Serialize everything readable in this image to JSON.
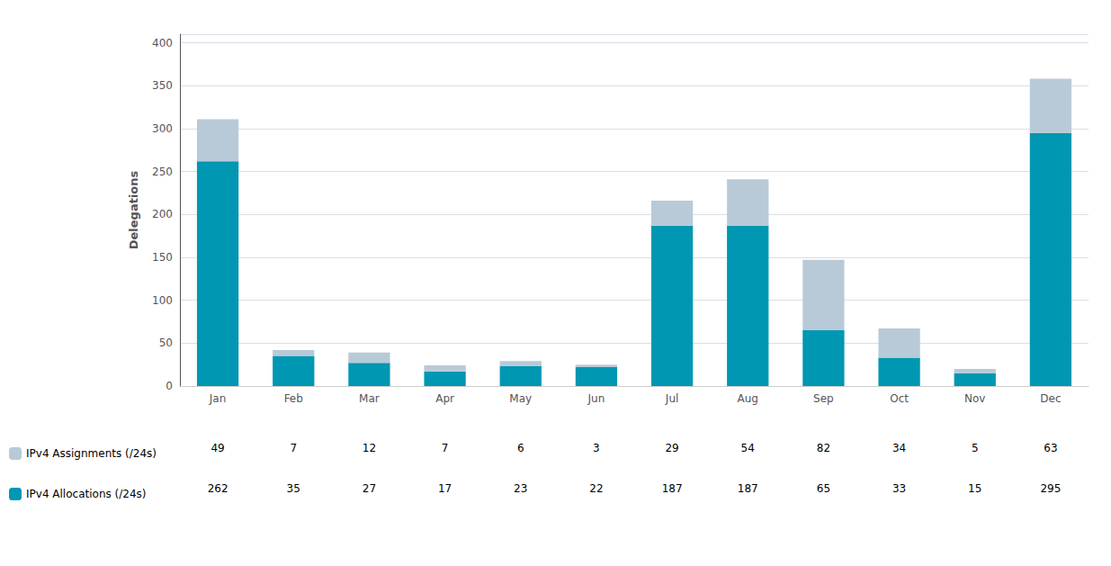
{
  "chart_data": {
    "type": "bar",
    "ylabel": "Delegations",
    "categories": [
      "Jan",
      "Feb",
      "Mar",
      "Apr",
      "May",
      "Jun",
      "Jul",
      "Aug",
      "Sep",
      "Oct",
      "Nov",
      "Dec"
    ],
    "series": [
      {
        "name": "IPv4 Allocations (/24s)",
        "color": "#0097B2",
        "values": [
          262,
          35,
          27,
          17,
          23,
          22,
          187,
          187,
          65,
          33,
          15,
          295
        ]
      },
      {
        "name": "IPv4 Assignments (/24s)",
        "color": "#B8CAD8",
        "values": [
          49,
          7,
          12,
          7,
          6,
          3,
          29,
          54,
          82,
          34,
          5,
          63
        ]
      }
    ],
    "stacked": true,
    "ylim": [
      0,
      410
    ],
    "yticks": [
      0,
      50,
      100,
      150,
      200,
      250,
      300,
      350,
      400
    ],
    "grid": true,
    "legend": "lower left"
  }
}
